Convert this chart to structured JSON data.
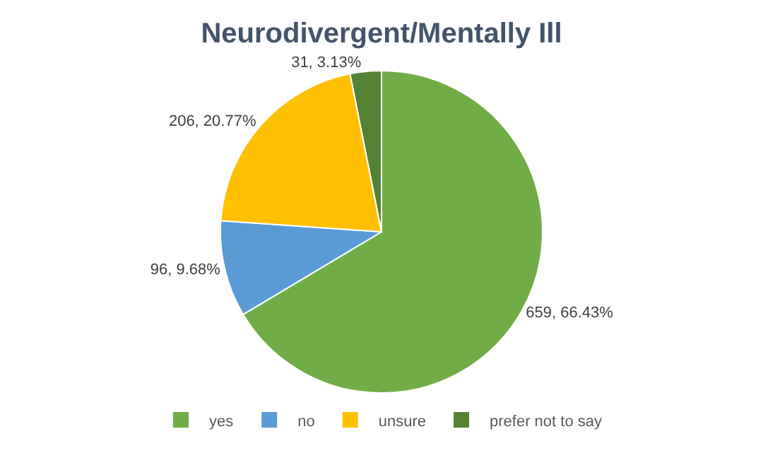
{
  "chart_data": {
    "type": "pie",
    "title": "Neurodivergent/Mentally Ill",
    "categories": [
      "yes",
      "no",
      "unsure",
      "prefer not to say"
    ],
    "values": [
      659,
      96,
      206,
      31
    ],
    "value_labels": [
      "659, 66.43%",
      "96, 9.68%",
      "206, 20.77%",
      "31, 3.13%"
    ],
    "colors": [
      "#70ad47",
      "#5b9bd5",
      "#ffc000",
      "#548235"
    ],
    "legend": "bottom"
  }
}
